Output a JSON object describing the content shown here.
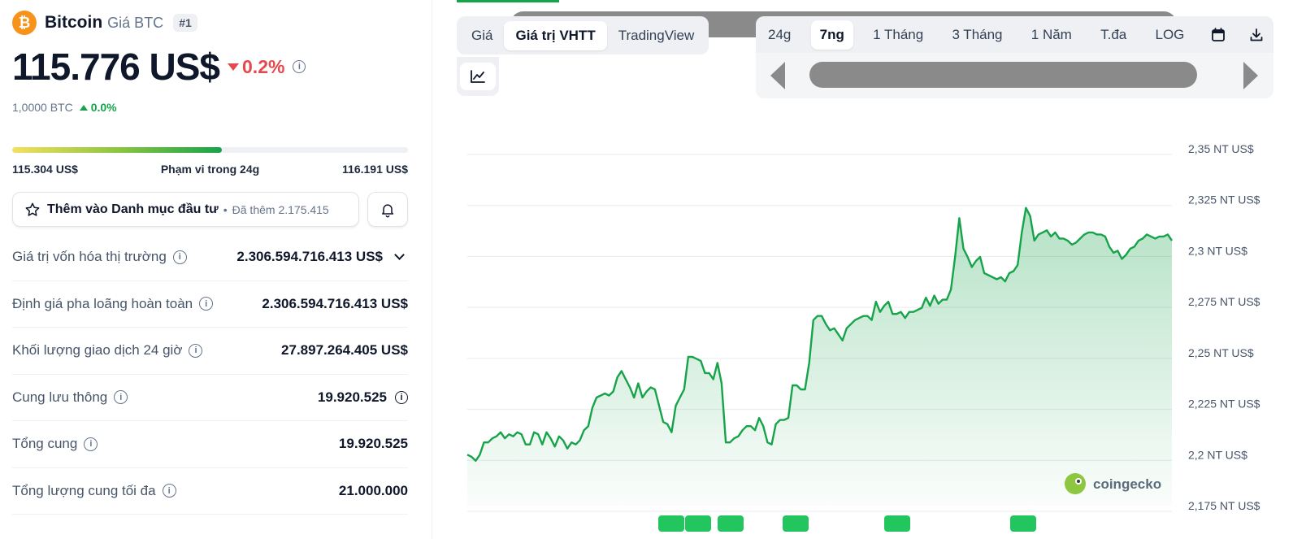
{
  "coin": {
    "logo_symbol": "₿",
    "name": "Bitcoin",
    "subtitle": "Giá BTC",
    "rank": "#1",
    "price": "115.776 US$",
    "change_24h": "0.2%",
    "btc_price": "1,0000 BTC",
    "btc_change": "0.0%"
  },
  "range": {
    "low": "115.304 US$",
    "label": "Phạm vi trong 24g",
    "high": "116.191 US$",
    "fill_fraction": 0.53
  },
  "watchlist": {
    "label": "Thêm vào Danh mục đầu tư",
    "separator": "•",
    "added": "Đã thêm 2.175.415"
  },
  "stats": [
    {
      "label": "Giá trị vốn hóa thị trường",
      "value": "2.306.594.716.413 US$"
    },
    {
      "label": "Định giá pha loãng hoàn toàn",
      "value": "2.306.594.716.413 US$"
    },
    {
      "label": "Khối lượng giao dịch 24 giờ",
      "value": "27.897.264.405 US$"
    },
    {
      "label": "Cung lưu thông",
      "value": "19.920.525"
    },
    {
      "label": "Tổng cung",
      "value": "19.920.525"
    },
    {
      "label": "Tổng lượng cung tối đa",
      "value": "21.000.000"
    }
  ],
  "view_tabs": [
    "Giá",
    "Giá trị VHTT",
    "TradingView"
  ],
  "view_tab_active": "Giá trị VHTT",
  "range_tabs": [
    "24g",
    "7ng",
    "1 Tháng",
    "3 Tháng",
    "1 Năm",
    "T.đa",
    "LOG"
  ],
  "range_tab_active": "7ng",
  "icons": {
    "calendar": "calendar-icon",
    "download": "download-icon",
    "line_chart": "line-chart-icon",
    "bell": "bell-icon",
    "star": "star-icon"
  },
  "colors": {
    "up": "#16a34a",
    "down": "#e5484d",
    "brand": "#f7931a"
  },
  "watermark": "coingecko",
  "chart_data": {
    "type": "area",
    "y_tick_labels": [
      "2,35 NT US$",
      "2,325 NT US$",
      "2,3 NT US$",
      "2,275 NT US$",
      "2,25 NT US$",
      "2,225 NT US$",
      "2,2 NT US$",
      "2,175 NT US$"
    ],
    "y_ticks": [
      2.35,
      2.325,
      2.3,
      2.275,
      2.25,
      2.225,
      2.2,
      2.175
    ],
    "ylim": [
      2.175,
      2.35
    ],
    "y_unit": "NT US$",
    "grid": true,
    "series": [
      {
        "values": [
          2.2,
          2.199,
          2.197,
          2.2,
          2.206,
          2.206,
          2.208,
          2.209,
          2.211,
          2.208,
          2.21,
          2.209,
          2.211,
          2.21,
          2.205,
          2.205,
          2.211,
          2.21,
          2.205,
          2.211,
          2.208,
          2.204,
          2.209,
          2.207,
          2.203,
          2.206,
          2.205,
          2.207,
          2.212,
          2.214,
          2.223,
          2.228,
          2.229,
          2.23,
          2.229,
          2.231,
          2.238,
          2.241,
          2.237,
          2.233,
          2.228,
          2.235,
          2.228,
          2.231,
          2.233,
          2.232,
          2.224,
          2.216,
          2.215,
          2.211,
          2.224,
          2.228,
          2.232,
          2.248,
          2.248,
          2.247,
          2.246,
          2.24,
          2.24,
          2.237,
          2.245,
          2.235,
          2.206,
          2.206,
          2.208,
          2.209,
          2.212,
          2.214,
          2.214,
          2.212,
          2.218,
          2.214,
          2.206,
          2.205,
          2.215,
          2.217,
          2.217,
          2.218,
          2.234,
          2.234,
          2.232,
          2.232,
          2.245,
          2.266,
          2.268,
          2.268,
          2.264,
          2.261,
          2.262,
          2.259,
          2.256,
          2.262,
          2.264,
          2.266,
          2.267,
          2.268,
          2.268,
          2.266,
          2.275,
          2.27,
          2.273,
          2.275,
          2.269,
          2.269,
          2.27,
          2.267,
          2.27,
          2.27,
          2.271,
          2.272,
          2.277,
          2.273,
          2.278,
          2.274,
          2.276,
          2.276,
          2.281,
          2.297,
          2.316,
          2.301,
          2.297,
          2.292,
          2.295,
          2.297,
          2.289,
          2.288,
          2.287,
          2.286,
          2.287,
          2.285,
          2.289,
          2.29,
          2.293,
          2.309,
          2.321,
          2.317,
          2.305,
          2.308,
          2.309,
          2.31,
          2.307,
          2.309,
          2.306,
          2.306,
          2.305,
          2.303,
          2.304,
          2.306,
          2.308,
          2.309,
          2.309,
          2.308,
          2.308,
          2.307,
          2.302,
          2.299,
          2.3,
          2.296,
          2.298,
          2.301,
          2.302,
          2.305,
          2.306,
          2.308,
          2.307,
          2.306,
          2.307,
          2.307,
          2.308,
          2.305
        ]
      }
    ]
  }
}
